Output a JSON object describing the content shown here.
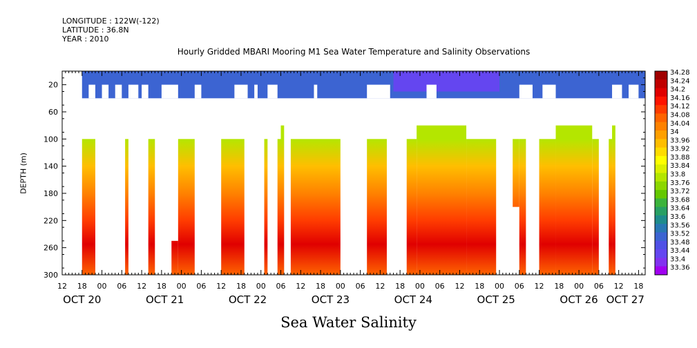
{
  "header": {
    "longitude": "LONGITUDE : 122W(-122)",
    "latitude": "LATITUDE : 36.8N",
    "year": "YEAR : 2010"
  },
  "chart_data": {
    "type": "heatmap",
    "title": "Hourly Gridded MBARI Mooring M1 Sea Water Temperature and Salinity Observations",
    "subtitle": "Sea Water Salinity",
    "ylabel": "DEPTH (m)",
    "xlabel": "",
    "x_range_hours": [
      0,
      176
    ],
    "y_range": [
      0,
      300
    ],
    "y_inverted": true,
    "y_ticks": [
      20,
      60,
      100,
      140,
      180,
      220,
      260,
      300
    ],
    "x_hour_ticks": [
      {
        "h": 0,
        "label": "12"
      },
      {
        "h": 6,
        "label": "18"
      },
      {
        "h": 12,
        "label": "00"
      },
      {
        "h": 18,
        "label": "06"
      },
      {
        "h": 24,
        "label": "12"
      },
      {
        "h": 30,
        "label": "18"
      },
      {
        "h": 36,
        "label": "00"
      },
      {
        "h": 42,
        "label": "06"
      },
      {
        "h": 48,
        "label": "12"
      },
      {
        "h": 54,
        "label": "18"
      },
      {
        "h": 60,
        "label": "00"
      },
      {
        "h": 66,
        "label": "06"
      },
      {
        "h": 72,
        "label": "12"
      },
      {
        "h": 78,
        "label": "18"
      },
      {
        "h": 84,
        "label": "00"
      },
      {
        "h": 90,
        "label": "06"
      },
      {
        "h": 96,
        "label": "12"
      },
      {
        "h": 102,
        "label": "18"
      },
      {
        "h": 108,
        "label": "00"
      },
      {
        "h": 114,
        "label": "06"
      },
      {
        "h": 120,
        "label": "12"
      },
      {
        "h": 126,
        "label": "18"
      },
      {
        "h": 132,
        "label": "00"
      },
      {
        "h": 138,
        "label": "06"
      },
      {
        "h": 144,
        "label": "12"
      },
      {
        "h": 150,
        "label": "18"
      },
      {
        "h": 156,
        "label": "00"
      },
      {
        "h": 162,
        "label": "06"
      },
      {
        "h": 168,
        "label": "12"
      },
      {
        "h": 174,
        "label": "18"
      }
    ],
    "x_day_labels": [
      {
        "h": 6,
        "label": "OCT 20"
      },
      {
        "h": 31,
        "label": "OCT 21"
      },
      {
        "h": 56,
        "label": "OCT 22"
      },
      {
        "h": 81,
        "label": "OCT 23"
      },
      {
        "h": 106,
        "label": "OCT 24"
      },
      {
        "h": 131,
        "label": "OCT 25"
      },
      {
        "h": 156,
        "label": "OCT 26"
      },
      {
        "h": 170,
        "label": "OCT 27"
      }
    ],
    "colorbar": {
      "levels": [
        "34.28",
        "34.24",
        "34.2",
        "34.16",
        "34.12",
        "34.08",
        "34.04",
        "34",
        "33.96",
        "33.92",
        "33.88",
        "33.84",
        "33.8",
        "33.76",
        "33.72",
        "33.68",
        "33.64",
        "33.6",
        "33.56",
        "33.52",
        "33.48",
        "33.44",
        "33.4",
        "33.36"
      ],
      "colors": [
        "#a00000",
        "#c00000",
        "#e00000",
        "#ff1400",
        "#ff3c00",
        "#ff6400",
        "#ff8200",
        "#ffa000",
        "#ffbe00",
        "#ffdc00",
        "#ffff00",
        "#dcf000",
        "#b4e600",
        "#8cd700",
        "#64c800",
        "#3cb43c",
        "#28a064",
        "#1e8c8c",
        "#2878b4",
        "#3c64d2",
        "#5050e6",
        "#6446f0",
        "#8232f0",
        "#a000f0"
      ]
    },
    "surface_salinity": 33.55,
    "deep_profile": [
      {
        "depth": 100,
        "salinity": 33.82
      },
      {
        "depth": 140,
        "salinity": 33.96
      },
      {
        "depth": 180,
        "salinity": 34.06
      },
      {
        "depth": 220,
        "salinity": 34.12
      },
      {
        "depth": 255,
        "salinity": 34.22
      },
      {
        "depth": 300,
        "salinity": 34.1
      }
    ],
    "surface_segments": [
      {
        "start": 6,
        "end": 176,
        "top": 0,
        "bottom": 40
      },
      {
        "start": 100,
        "end": 132,
        "top": 0,
        "bottom": 30,
        "salinity": 33.45
      }
    ],
    "surface_gaps": [
      {
        "start": 8,
        "end": 10
      },
      {
        "start": 12,
        "end": 14
      },
      {
        "start": 16,
        "end": 18
      },
      {
        "start": 20,
        "end": 22
      },
      {
        "start": 22,
        "end": 23
      },
      {
        "start": 24,
        "end": 26
      },
      {
        "start": 30,
        "end": 35
      },
      {
        "start": 40,
        "end": 42
      },
      {
        "start": 52,
        "end": 56
      },
      {
        "start": 58,
        "end": 59
      },
      {
        "start": 62,
        "end": 65
      },
      {
        "start": 76,
        "end": 77
      },
      {
        "start": 92,
        "end": 99
      },
      {
        "start": 110,
        "end": 113
      },
      {
        "start": 138,
        "end": 142
      },
      {
        "start": 145,
        "end": 149
      },
      {
        "start": 166,
        "end": 169
      },
      {
        "start": 171,
        "end": 174
      }
    ],
    "deep_segments": [
      {
        "start": 6,
        "end": 10,
        "top": 100
      },
      {
        "start": 19,
        "end": 20,
        "top": 100
      },
      {
        "start": 26,
        "end": 28,
        "top": 100
      },
      {
        "start": 33,
        "end": 35,
        "top": 250
      },
      {
        "start": 35,
        "end": 40,
        "top": 100
      },
      {
        "start": 48,
        "end": 55,
        "top": 100
      },
      {
        "start": 61,
        "end": 62,
        "top": 100
      },
      {
        "start": 65,
        "end": 66,
        "top": 100
      },
      {
        "start": 66,
        "end": 67,
        "top": 80
      },
      {
        "start": 69,
        "end": 84,
        "top": 100
      },
      {
        "start": 92,
        "end": 98,
        "top": 100
      },
      {
        "start": 104,
        "end": 107,
        "top": 100
      },
      {
        "start": 107,
        "end": 122,
        "top": 80
      },
      {
        "start": 122,
        "end": 131,
        "top": 100
      },
      {
        "start": 136,
        "end": 138,
        "top": 100,
        "bottom": 200
      },
      {
        "start": 138,
        "end": 140,
        "top": 100
      },
      {
        "start": 144,
        "end": 149,
        "top": 100
      },
      {
        "start": 149,
        "end": 160,
        "top": 80
      },
      {
        "start": 160,
        "end": 162,
        "top": 100
      },
      {
        "start": 165,
        "end": 166,
        "top": 100
      },
      {
        "start": 166,
        "end": 167,
        "top": 80
      }
    ]
  }
}
